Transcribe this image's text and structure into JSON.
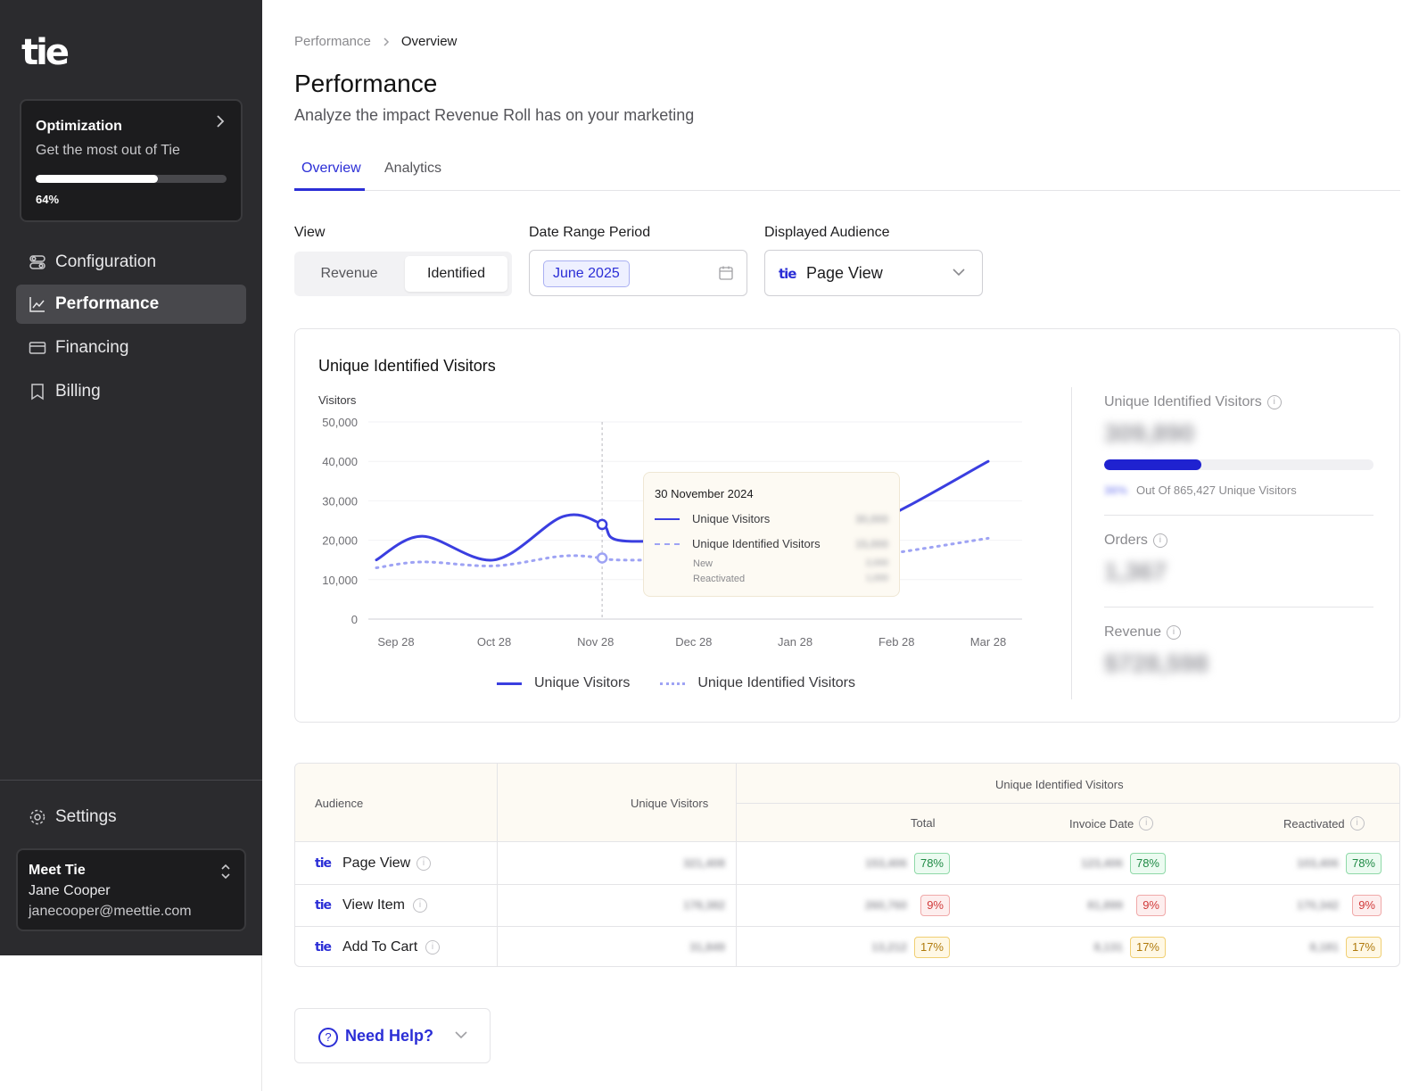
{
  "brand": {
    "logo_text": "tie",
    "accent": "#2b2ed6"
  },
  "sidebar": {
    "optimization": {
      "title": "Optimization",
      "subtitle": "Get the most out of Tie",
      "progress": 0.64,
      "progress_label": "64%"
    },
    "items": [
      {
        "label": "Configuration",
        "icon": "toggles-icon",
        "active": false
      },
      {
        "label": "Performance",
        "icon": "trend-chart-icon",
        "active": true
      },
      {
        "label": "Financing",
        "icon": "card-icon",
        "active": false
      },
      {
        "label": "Billing",
        "icon": "receipt-icon",
        "active": false
      }
    ],
    "settings_label": "Settings",
    "user": {
      "company": "Meet Tie",
      "name": "Jane Cooper",
      "email": "janecooper@meettie.com"
    }
  },
  "breadcrumb": {
    "parent": "Performance",
    "current": "Overview"
  },
  "page": {
    "title": "Performance",
    "subtitle": "Analyze the impact Revenue Roll has on your marketing"
  },
  "tabs": [
    {
      "label": "Overview",
      "active": true
    },
    {
      "label": "Analytics",
      "active": false
    }
  ],
  "filters": {
    "view_label": "View",
    "view_options": [
      "Revenue",
      "Identified"
    ],
    "view_selected": "Identified",
    "date_label": "Date Range Period",
    "date_value": "June 2025",
    "audience_label": "Displayed Audience",
    "audience_value": "Page View"
  },
  "chart_card": {
    "title": "Unique Identified Visitors",
    "tooltip": {
      "date": "30 November 2024",
      "row1": "Unique Visitors",
      "row2": "Unique Identified Visitors",
      "sub1": "New",
      "sub2": "Reactivated",
      "blur1": "30,000",
      "blur2": "15,000",
      "blur3": "2,000",
      "blur4": "1,000"
    }
  },
  "chart_data": {
    "type": "line",
    "ylabel": "Visitors",
    "xlabel": "",
    "ylim": [
      0,
      50000
    ],
    "yticks": [
      "50,000",
      "40,000",
      "30,000",
      "20,000",
      "10,000",
      "0"
    ],
    "x_ticks": [
      "Sep 28",
      "Oct 28",
      "Nov 28",
      "Dec 28",
      "Jan 28",
      "Feb 28",
      "Mar 28"
    ],
    "x": [
      "Sep 22",
      "Oct 6",
      "Oct 28",
      "Nov 18",
      "Nov 30",
      "Dec 5",
      "Dec 28",
      "Jan 28",
      "Feb 20",
      "Mar 28"
    ],
    "series": [
      {
        "name": "Unique Visitors",
        "style": "solid",
        "color": "#3a3ee0",
        "values": [
          15000,
          21000,
          15000,
          26000,
          24000,
          20000,
          20000,
          20000,
          24000,
          40000
        ]
      },
      {
        "name": "Unique Identified Visitors",
        "style": "dashed",
        "color": "#9ea3f4",
        "values": [
          13000,
          14500,
          13500,
          16000,
          15500,
          15000,
          15000,
          15000,
          16000,
          20500
        ]
      }
    ],
    "highlight_x": "Nov 30",
    "legend": "bottom-center"
  },
  "stats": {
    "uiv_label": "Unique Identified Visitors",
    "uiv_value": "309,890",
    "uiv_fraction": 0.36,
    "uiv_pct": "36%",
    "uiv_note": "Out Of 865,427 Unique Visitors",
    "orders_label": "Orders",
    "orders_value": "1,367",
    "revenue_label": "Revenue",
    "revenue_value": "$728,598"
  },
  "table": {
    "headers": {
      "audience": "Audience",
      "unique_visitors": "Unique Visitors",
      "uiv_group": "Unique Identified Visitors",
      "total": "Total",
      "invoice_date": "Invoice Date",
      "reactivated": "Reactivated"
    },
    "rows": [
      {
        "name": "Page View",
        "uv": "321,408",
        "total": "153,406",
        "total_pct": "78%",
        "invoice": "123,406",
        "invoice_pct": "78%",
        "react": "103,406",
        "react_pct": "78%",
        "tone": "green"
      },
      {
        "name": "View Item",
        "uv": "178,382",
        "total": "260,760",
        "total_pct": "9%",
        "invoice": "81,899",
        "invoice_pct": "9%",
        "react": "170,342",
        "react_pct": "9%",
        "tone": "red"
      },
      {
        "name": "Add To Cart",
        "uv": "31,849",
        "total": "13,212",
        "total_pct": "17%",
        "invoice": "8,131",
        "invoice_pct": "17%",
        "react": "8,181",
        "react_pct": "17%",
        "tone": "yellow"
      }
    ]
  },
  "help": {
    "label": "Need Help?"
  }
}
